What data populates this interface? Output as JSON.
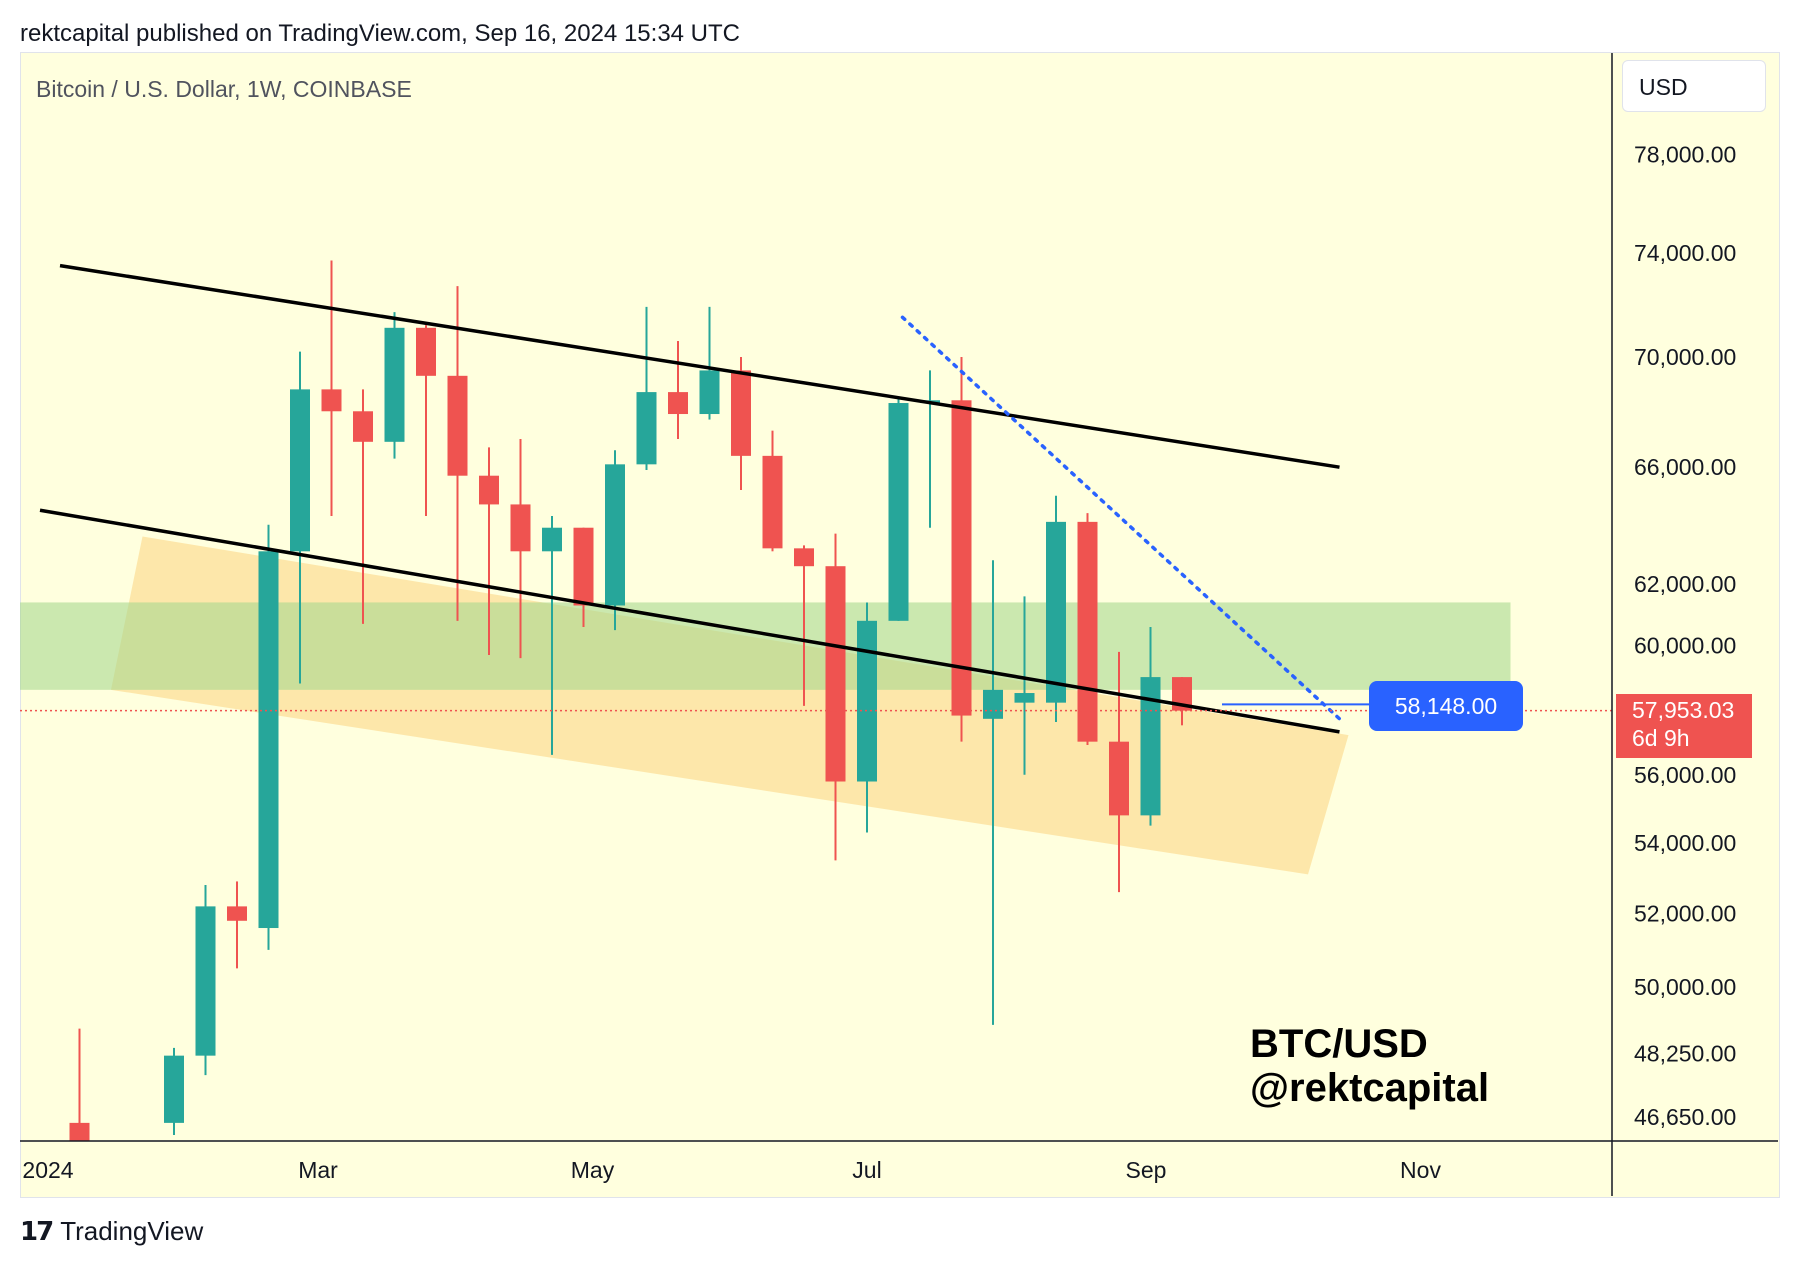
{
  "header": {
    "publish_line": "rektcapital published on TradingView.com, Sep 16, 2024 15:34 UTC"
  },
  "toolbar": {
    "currency_label": "USD"
  },
  "footer": {
    "brand": "TradingView"
  },
  "watermark": {
    "line1": "BTC/USD",
    "line2": "@rektcapital"
  },
  "colors": {
    "background": "#ffffde",
    "up_candle": "#26a69a",
    "down_candle": "#ef5350",
    "green_zone": "#c3e6b3",
    "orange_zone": "#fde3a1",
    "trend_line": "#000000",
    "dotted_line": "#2962ff",
    "price_label_blue": "#2962ff",
    "price_label_red": "#ef5350"
  },
  "chart_data": {
    "type": "candlestick",
    "title": "Bitcoin / U.S. Dollar, 1W, COINBASE",
    "y_axis_scale": "log",
    "y_ticks": [
      "78,000.00",
      "74,000.00",
      "70,000.00",
      "66,000.00",
      "62,000.00",
      "60,000.00",
      "56,000.00",
      "54,000.00",
      "52,000.00",
      "50,000.00",
      "48,250.00",
      "46,650.00"
    ],
    "y_tick_values": [
      78000,
      74000,
      70000,
      66000,
      62000,
      60000,
      56000,
      54000,
      52000,
      50000,
      48250,
      46650
    ],
    "x_ticks": [
      "2024",
      "Mar",
      "May",
      "Jul",
      "Sep",
      "Nov"
    ],
    "x_tick_dates": [
      "2024-01-01",
      "2024-03-01",
      "2024-05-01",
      "2024-07-01",
      "2024-09-01",
      "2024-11-01"
    ],
    "last_price_label": "57,953.03",
    "last_price": 57953.03,
    "countdown": "6d 9h",
    "horizontal_level_label": "58,148.00",
    "horizontal_level": 58148,
    "candles": [
      {
        "date": "2024-01-08",
        "open": 46500,
        "high": 48900,
        "low": 45500,
        "close": 46000
      },
      {
        "date": "2024-01-29",
        "open": 46500,
        "high": 48400,
        "low": 46200,
        "close": 48200
      },
      {
        "date": "2024-02-05",
        "open": 48200,
        "high": 52800,
        "low": 47700,
        "close": 52200
      },
      {
        "date": "2024-02-12",
        "open": 52200,
        "high": 52900,
        "low": 50500,
        "close": 51800
      },
      {
        "date": "2024-02-19",
        "open": 51600,
        "high": 64000,
        "low": 51000,
        "close": 63100
      },
      {
        "date": "2024-02-26",
        "open": 63100,
        "high": 70200,
        "low": 58800,
        "close": 68800
      },
      {
        "date": "2024-03-04",
        "open": 68800,
        "high": 73700,
        "low": 64300,
        "close": 68000
      },
      {
        "date": "2024-03-11",
        "open": 68000,
        "high": 68800,
        "low": 60700,
        "close": 66900
      },
      {
        "date": "2024-03-18",
        "open": 66900,
        "high": 71700,
        "low": 66300,
        "close": 71100
      },
      {
        "date": "2024-03-25",
        "open": 71100,
        "high": 71200,
        "low": 64300,
        "close": 69300
      },
      {
        "date": "2024-04-01",
        "open": 69300,
        "high": 72700,
        "low": 60800,
        "close": 65700
      },
      {
        "date": "2024-04-08",
        "open": 65700,
        "high": 66700,
        "low": 59700,
        "close": 64700
      },
      {
        "date": "2024-04-15",
        "open": 64700,
        "high": 67000,
        "low": 59600,
        "close": 63100
      },
      {
        "date": "2024-04-22",
        "open": 63100,
        "high": 64300,
        "low": 56600,
        "close": 63900
      },
      {
        "date": "2024-04-29",
        "open": 63900,
        "high": 63900,
        "low": 60600,
        "close": 61300
      },
      {
        "date": "2024-05-06",
        "open": 61300,
        "high": 66600,
        "low": 60500,
        "close": 66100
      },
      {
        "date": "2024-05-13",
        "open": 66100,
        "high": 71900,
        "low": 65900,
        "close": 68700
      },
      {
        "date": "2024-05-20",
        "open": 68700,
        "high": 70600,
        "low": 67000,
        "close": 67900
      },
      {
        "date": "2024-05-27",
        "open": 67900,
        "high": 71900,
        "low": 67700,
        "close": 69500
      },
      {
        "date": "2024-06-03",
        "open": 69500,
        "high": 70000,
        "low": 65200,
        "close": 66400
      },
      {
        "date": "2024-06-10",
        "open": 66400,
        "high": 67300,
        "low": 63100,
        "close": 63200
      },
      {
        "date": "2024-06-17",
        "open": 63200,
        "high": 63300,
        "low": 58100,
        "close": 62600
      },
      {
        "date": "2024-06-24",
        "open": 62600,
        "high": 63700,
        "low": 53500,
        "close": 55800
      },
      {
        "date": "2024-07-01",
        "open": 55800,
        "high": 61400,
        "low": 54300,
        "close": 60800
      },
      {
        "date": "2024-07-08",
        "open": 60800,
        "high": 68500,
        "low": 60800,
        "close": 68300
      },
      {
        "date": "2024-07-15",
        "open": 68300,
        "high": 69500,
        "low": 63900,
        "close": 68400
      },
      {
        "date": "2024-07-22",
        "open": 68400,
        "high": 70000,
        "low": 57000,
        "close": 57800
      },
      {
        "date": "2024-07-29",
        "open": 57700,
        "high": 62800,
        "low": 49000,
        "close": 58600
      },
      {
        "date": "2024-08-05",
        "open": 58200,
        "high": 61600,
        "low": 56000,
        "close": 58500
      },
      {
        "date": "2024-08-12",
        "open": 58200,
        "high": 65000,
        "low": 57600,
        "close": 64100
      },
      {
        "date": "2024-08-19",
        "open": 64100,
        "high": 64400,
        "low": 56900,
        "close": 57000
      },
      {
        "date": "2024-08-26",
        "open": 57000,
        "high": 59800,
        "low": 52600,
        "close": 54800
      },
      {
        "date": "2024-09-02",
        "open": 54800,
        "high": 60600,
        "low": 54500,
        "close": 59000
      },
      {
        "date": "2024-09-09",
        "open": 59000,
        "high": 59000,
        "low": 57500,
        "close": 57953.03
      }
    ],
    "annotations": {
      "upper_trendline": [
        {
          "date": "2024-01-01",
          "price": 73500
        },
        {
          "date": "2024-10-14",
          "price": 66000
        }
      ],
      "lower_trendline": [
        {
          "date": "2024-01-01",
          "price": 64500
        },
        {
          "date": "2024-10-14",
          "price": 57300
        }
      ],
      "dotted_resistance": [
        {
          "date": "2024-07-08",
          "price": 71500
        },
        {
          "date": "2024-10-14",
          "price": 57700
        }
      ],
      "green_zone": {
        "from_date": "2024-01-01",
        "to_date": "2024-11-21",
        "low": 58600,
        "high": 61400
      },
      "orange_channel": [
        {
          "date": "2024-01-22",
          "price": 63600
        },
        {
          "date": "2024-01-15",
          "price": 58600
        },
        {
          "date": "2024-10-07",
          "price": 53100
        },
        {
          "date": "2024-10-16",
          "price": 57200
        }
      ]
    }
  }
}
